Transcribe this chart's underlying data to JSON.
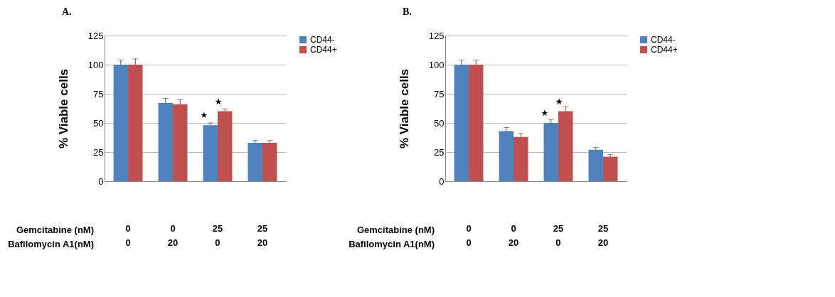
{
  "chart_data": [
    {
      "type": "bar",
      "title": "A.",
      "ylabel": "% Viable cells",
      "categories": [
        "0\n0",
        "0\n20",
        "25\n0",
        "25\n20"
      ],
      "series": [
        {
          "name": "CD44-",
          "color": "#4f81bd",
          "values": [
            100,
            67,
            48,
            33
          ],
          "errors": [
            [
              100,
              104
            ],
            [
              67,
              71
            ],
            [
              48,
              50
            ],
            [
              33,
              35
            ]
          ]
        },
        {
          "name": "CD44+",
          "color": "#c0504d",
          "values": [
            100,
            66,
            60,
            33
          ],
          "errors": [
            [
              100,
              105
            ],
            [
              66,
              70
            ],
            [
              60,
              62
            ],
            [
              33,
              35
            ]
          ]
        }
      ],
      "ylim": [
        0,
        125
      ],
      "yticks": [
        0,
        25,
        50,
        75,
        100,
        125
      ],
      "grid": "y",
      "legend": "right",
      "annotations": [
        "Gemcitabine (nM)",
        "Bafilomycin A1(nM)",
        {
          "text": "★",
          "x": "25\n0",
          "y": 48
        },
        {
          "text": "★",
          "x": "25\n0",
          "y": 60
        }
      ]
    },
    {
      "type": "bar",
      "title": "B.",
      "ylabel": "% Viable cells",
      "categories": [
        "0\n0",
        "0\n20",
        "25\n0",
        "25\n20"
      ],
      "series": [
        {
          "name": "CD44-",
          "color": "#4f81bd",
          "values": [
            100,
            43,
            50,
            27
          ],
          "errors": [
            [
              100,
              104
            ],
            [
              43,
              46
            ],
            [
              50,
              53
            ],
            [
              27,
              29
            ]
          ]
        },
        {
          "name": "CD44+",
          "color": "#c0504d",
          "values": [
            100,
            38,
            60,
            21
          ],
          "errors": [
            [
              100,
              104
            ],
            [
              38,
              41
            ],
            [
              60,
              64
            ],
            [
              21,
              23
            ]
          ]
        }
      ],
      "ylim": [
        0,
        125
      ],
      "yticks": [
        0,
        25,
        50,
        75,
        100,
        125
      ],
      "grid": "y",
      "legend": "right",
      "annotations": [
        "Gemcitabine (nM)",
        "Bafilomycin A1(nM)",
        {
          "text": "★",
          "x": "25\n0",
          "y": 50
        },
        {
          "text": "★",
          "x": "25\n0",
          "y": 60
        }
      ]
    }
  ]
}
